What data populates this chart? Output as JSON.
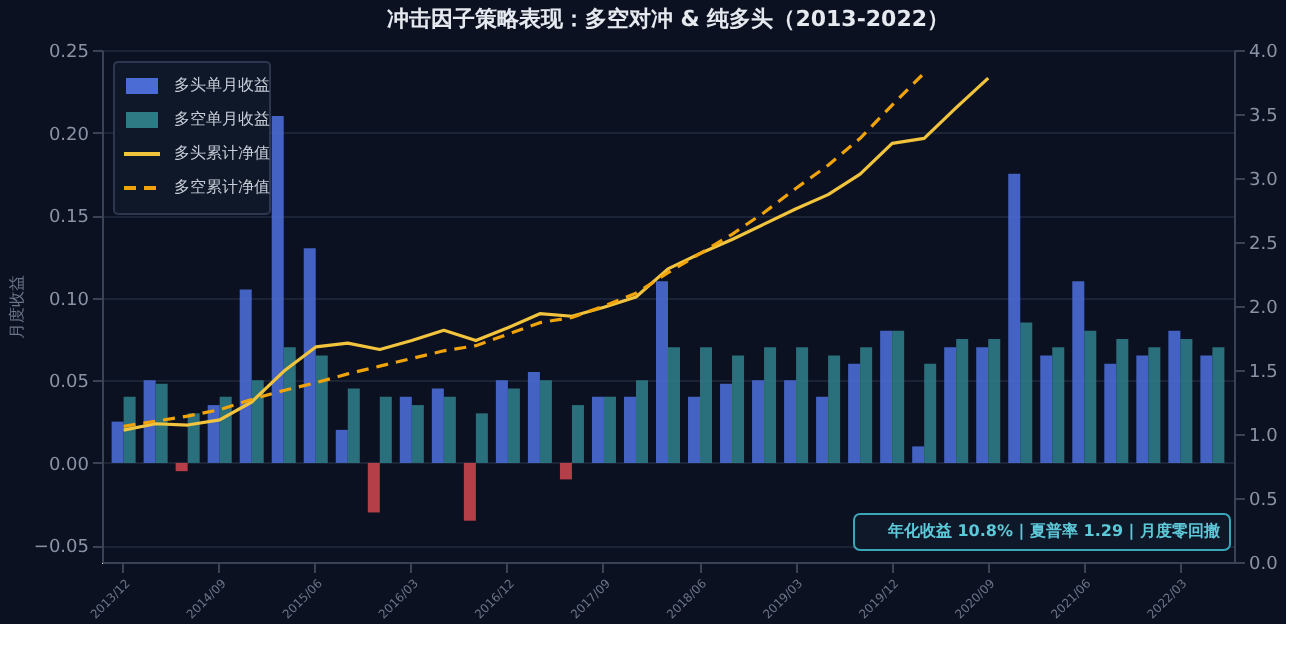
{
  "chart_data": {
    "type": "bar",
    "title": "冲击因子策略表现：多空对冲 & 纯多头（2013-2022）",
    "ylabel": "月度收益",
    "categories": [
      "2013/12",
      null,
      null,
      "2014/09",
      null,
      null,
      "2015/06",
      null,
      null,
      "2016/03",
      null,
      null,
      "2016/12",
      null,
      null,
      "2017/09",
      null,
      null,
      "2018/06",
      null,
      null,
      "2019/03",
      null,
      null,
      "2019/12",
      null,
      null,
      "2020/09",
      null,
      null,
      "2021/06",
      null,
      null,
      "2022/03",
      null
    ],
    "series": [
      {
        "name": "多头单月收益",
        "color": "#4a6cd4",
        "colors": [
          "#4a6cd4",
          "#4a6cd4",
          "#c8454d",
          "#4a6cd4",
          "#4a6cd4",
          "#4a6cd4",
          "#4a6cd4",
          "#4a6cd4",
          "#c8454d",
          "#4a6cd4",
          "#4a6cd4",
          "#c8454d",
          "#4a6cd4",
          "#4a6cd4",
          "#c8454d",
          "#4a6cd4",
          "#4a6cd4",
          "#4a6cd4",
          "#4a6cd4",
          "#4a6cd4",
          "#4a6cd4",
          "#4a6cd4",
          "#4a6cd4",
          "#4a6cd4",
          "#4a6cd4",
          "#4a6cd4",
          "#4a6cd4",
          "#4a6cd4",
          "#4a6cd4",
          "#4a6cd4",
          "#4a6cd4",
          "#4a6cd4",
          "#4a6cd4",
          "#4a6cd4",
          "#4a6cd4"
        ],
        "values": [
          0.025,
          0.05,
          -0.005,
          0.035,
          0.105,
          0.21,
          0.13,
          0.02,
          -0.03,
          0.04,
          0.045,
          -0.035,
          0.05,
          0.055,
          -0.01,
          0.04,
          0.04,
          0.11,
          0.04,
          0.048,
          0.05,
          0.05,
          0.04,
          0.06,
          0.08,
          0.01,
          0.07,
          0.07,
          0.175,
          0.065,
          0.11,
          0.06,
          0.065,
          0.08,
          0.065
        ]
      },
      {
        "name": "多空单月收益",
        "color": "#2e7b86",
        "values": [
          0.04,
          0.048,
          0.03,
          0.04,
          0.05,
          0.07,
          0.065,
          0.045,
          0.04,
          0.035,
          0.04,
          0.03,
          0.045,
          0.05,
          0.035,
          0.04,
          0.05,
          0.07,
          0.07,
          0.065,
          0.07,
          0.07,
          0.065,
          0.07,
          0.08,
          0.06,
          0.075,
          0.075,
          0.085,
          0.07,
          0.08,
          0.075,
          0.07,
          0.075,
          0.07
        ]
      },
      {
        "name": "多头累计净值",
        "type": "line",
        "axis": "y2",
        "color": "#f2c43d",
        "line_style": "solid",
        "values": [
          1.03,
          1.08,
          1.07,
          1.11,
          1.25,
          1.49,
          1.68,
          1.71,
          1.66,
          1.73,
          1.81,
          1.73,
          1.83,
          1.94,
          1.92,
          1.99,
          2.07,
          2.29,
          2.41,
          2.52,
          2.64,
          2.76,
          2.87,
          3.03,
          3.27,
          3.31,
          3.55,
          3.78,
          null,
          null,
          null,
          null,
          null,
          null,
          null
        ]
      },
      {
        "name": "多空累计净值",
        "type": "line",
        "axis": "y2",
        "color": "#f0a30a",
        "line_style": "dashed",
        "values": [
          1.06,
          1.1,
          1.14,
          1.19,
          1.27,
          1.34,
          1.4,
          1.47,
          1.53,
          1.59,
          1.65,
          1.69,
          1.78,
          1.87,
          1.91,
          2.0,
          2.1,
          2.26,
          2.41,
          2.56,
          2.73,
          2.92,
          3.1,
          3.31,
          3.57,
          3.82,
          null,
          null,
          null,
          null,
          null,
          null,
          null,
          null,
          null
        ]
      }
    ],
    "ylim": [
      -0.06,
      0.25
    ],
    "yticks": [
      {
        "value": -0.05,
        "label": "−0.05"
      },
      {
        "value": 0,
        "label": "0.00"
      },
      0.05,
      {
        "value": 0.1,
        "label": "0.10"
      },
      0.15,
      {
        "value": 0.2,
        "label": "0.20"
      },
      0.25
    ],
    "y2lim": [
      0,
      4
    ],
    "y2ticks": [
      {
        "value": 0,
        "label": "0.0"
      },
      0.5,
      {
        "value": 1,
        "label": "1.0"
      },
      1.5,
      {
        "value": 2,
        "label": "2.0"
      },
      2.5,
      {
        "value": 3,
        "label": "3.0"
      },
      3.5,
      {
        "value": 4,
        "label": "4.0"
      }
    ],
    "grid": "y",
    "legend": "top left",
    "marker": "none",
    "annotations": [
      "年化收益 10.8% | 夏普率 1.29 | 月度零回撤"
    ]
  }
}
